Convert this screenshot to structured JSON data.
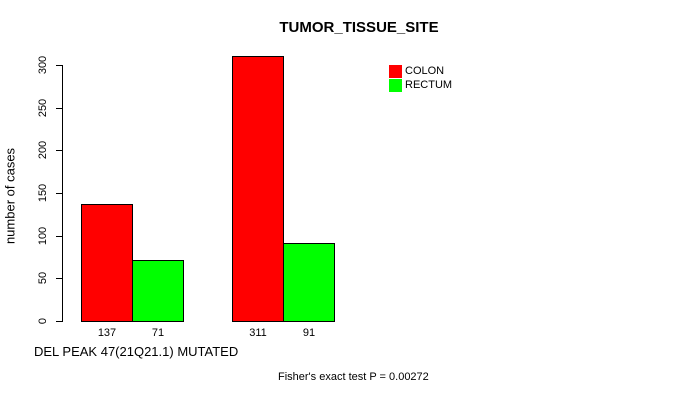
{
  "title": "TUMOR_TISSUE_SITE",
  "chart_data": {
    "type": "bar",
    "title": "TUMOR_TISSUE_SITE",
    "ylabel": "number of cases",
    "xlabel": "DEL PEAK 47(21Q21.1) MUTATED",
    "ylim": [
      0,
      300
    ],
    "yticks": [
      0,
      50,
      100,
      150,
      200,
      250,
      300
    ],
    "grid": false,
    "legend_position": "top-right",
    "series": [
      {
        "name": "COLON",
        "color": "#ff0000",
        "values": [
          137,
          311
        ]
      },
      {
        "name": "RECTUM",
        "color": "#00ff00",
        "values": [
          71,
          91
        ]
      }
    ],
    "groups": [
      {
        "bars": [
          {
            "series": "COLON",
            "value": 137,
            "label": "137",
            "color": "#ff0000"
          },
          {
            "series": "RECTUM",
            "value": 71,
            "label": "71",
            "color": "#00ff00"
          }
        ]
      },
      {
        "bars": [
          {
            "series": "COLON",
            "value": 311,
            "label": "311",
            "color": "#ff0000"
          },
          {
            "series": "RECTUM",
            "value": 91,
            "label": "91",
            "color": "#00ff00"
          }
        ]
      }
    ],
    "legend": [
      {
        "label": "COLON",
        "color": "#ff0000"
      },
      {
        "label": "RECTUM",
        "color": "#00ff00"
      }
    ],
    "annotation": "Fisher's exact test P = 0.00272"
  }
}
